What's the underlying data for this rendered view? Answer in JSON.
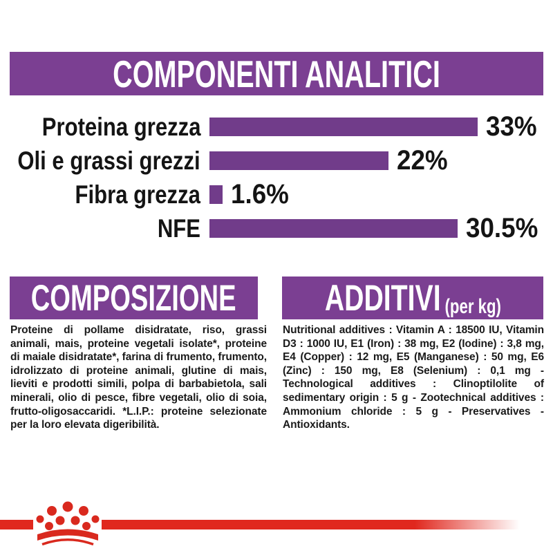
{
  "header": {
    "title": "COMPONENTI ANALITICI",
    "bg_color": "#7B3F92",
    "text_color": "#FFFFFF"
  },
  "chart_data": {
    "type": "bar",
    "orientation": "horizontal",
    "categories": [
      "Proteina grezza",
      "Oli e grassi grezzi",
      "Fibra grezza",
      "NFE"
    ],
    "values": [
      33,
      22,
      1.6,
      30.5
    ],
    "value_labels": [
      "33%",
      "22%",
      "1.6%",
      "30.5%"
    ],
    "title": "COMPONENTI ANALITICI",
    "xlabel": "",
    "ylabel": "",
    "xlim": [
      0,
      33
    ],
    "grid": false,
    "legend": false,
    "bar_color": "#713C8A",
    "label_color": "#141414"
  },
  "sections": {
    "composizione": {
      "title": "COMPOSIZIONE",
      "body": "Proteine di pollame disidratate, riso, grassi animali, mais, proteine vegetali isolate*, proteine di maiale disidratate*, farina di frumento, frumento, idrolizzato di proteine animali, glutine di mais, lieviti e prodotti simili, polpa di barbabietola, sali minerali, olio di pesce, fibre vegetali, olio di soia, frutto-oligosaccaridi. *L.I.P.: proteine selezionate per la loro elevata digeribilità."
    },
    "additivi": {
      "title": "ADDITIVI",
      "title_suffix": "(per kg)",
      "body": "Nutritional additives : Vitamin A : 18500 IU, Vitamin D3 : 1000 IU, E1 (Iron) : 38 mg, E2 (Iodine) : 3,8 mg, E4 (Copper) : 12 mg, E5 (Manganese) : 50 mg, E6 (Zinc) : 150 mg, E8 (Selenium) : 0,1 mg - Technological additives : Clinoptilolite of sedimentary origin : 5 g - Zootechnical additives : Ammonium chloride : 5 g - Preservatives - Antioxidants."
    }
  },
  "footer": {
    "brand_icon": "royal-canin-crown-icon",
    "line_color": "#E0281E",
    "crown_color": "#D9291E"
  }
}
